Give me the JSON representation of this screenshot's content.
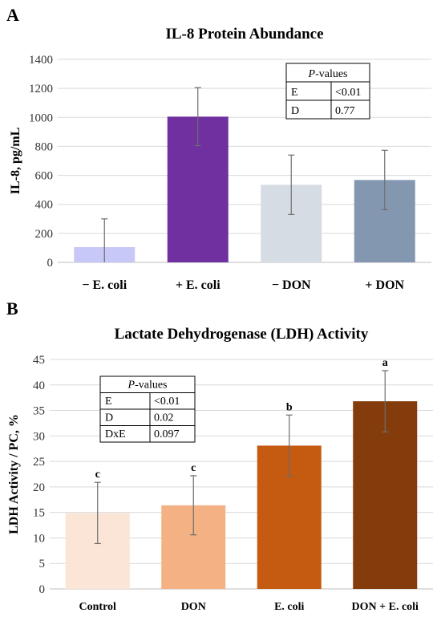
{
  "chart_data": [
    {
      "panel": "A",
      "type": "bar",
      "title": "IL-8 Protein Abundance",
      "xlabel": "",
      "ylabel": "IL-8, pg/mL",
      "categories": [
        "− E. coli",
        "+ E. coli",
        "− DON",
        "+ DON"
      ],
      "values": [
        105,
        1005,
        535,
        568
      ],
      "errors": [
        195,
        200,
        205,
        205
      ],
      "bar_colors": [
        "#c8c8f8",
        "#7030a0",
        "#d6dce4",
        "#8497b0"
      ],
      "ylim": [
        0,
        1400
      ],
      "yticks": [
        0,
        200,
        400,
        600,
        800,
        1000,
        1200,
        1400
      ],
      "grid": true,
      "pvalues": {
        "header_italic": "P",
        "header_rest": "-values",
        "rows": [
          {
            "factor": "E",
            "value": "<0.01"
          },
          {
            "factor": "D",
            "value": "0.77"
          }
        ]
      }
    },
    {
      "panel": "B",
      "type": "bar",
      "title": "Lactate Dehydrogenase (LDH) Activity",
      "xlabel": "",
      "ylabel": "LDH Activity / PC, %",
      "categories": [
        "Control",
        "DON",
        "E. coli",
        "DON + E. coli"
      ],
      "values": [
        14.9,
        16.4,
        28.1,
        36.8
      ],
      "errors": [
        6.0,
        5.8,
        6.0,
        6.0
      ],
      "labels": [
        "c",
        "c",
        "b",
        "a"
      ],
      "bar_colors": [
        "#fbe5d6",
        "#f4b183",
        "#c55a11",
        "#843c0c"
      ],
      "ylim": [
        0,
        45
      ],
      "yticks": [
        0,
        5,
        10,
        15,
        20,
        25,
        30,
        35,
        40,
        45
      ],
      "grid": true,
      "pvalues": {
        "header_italic": "P",
        "header_rest": "-values",
        "rows": [
          {
            "factor": "E",
            "value": "<0.01"
          },
          {
            "factor": "D",
            "value": "0.02"
          },
          {
            "factor": "DxE",
            "value": "0.097"
          }
        ]
      }
    }
  ]
}
